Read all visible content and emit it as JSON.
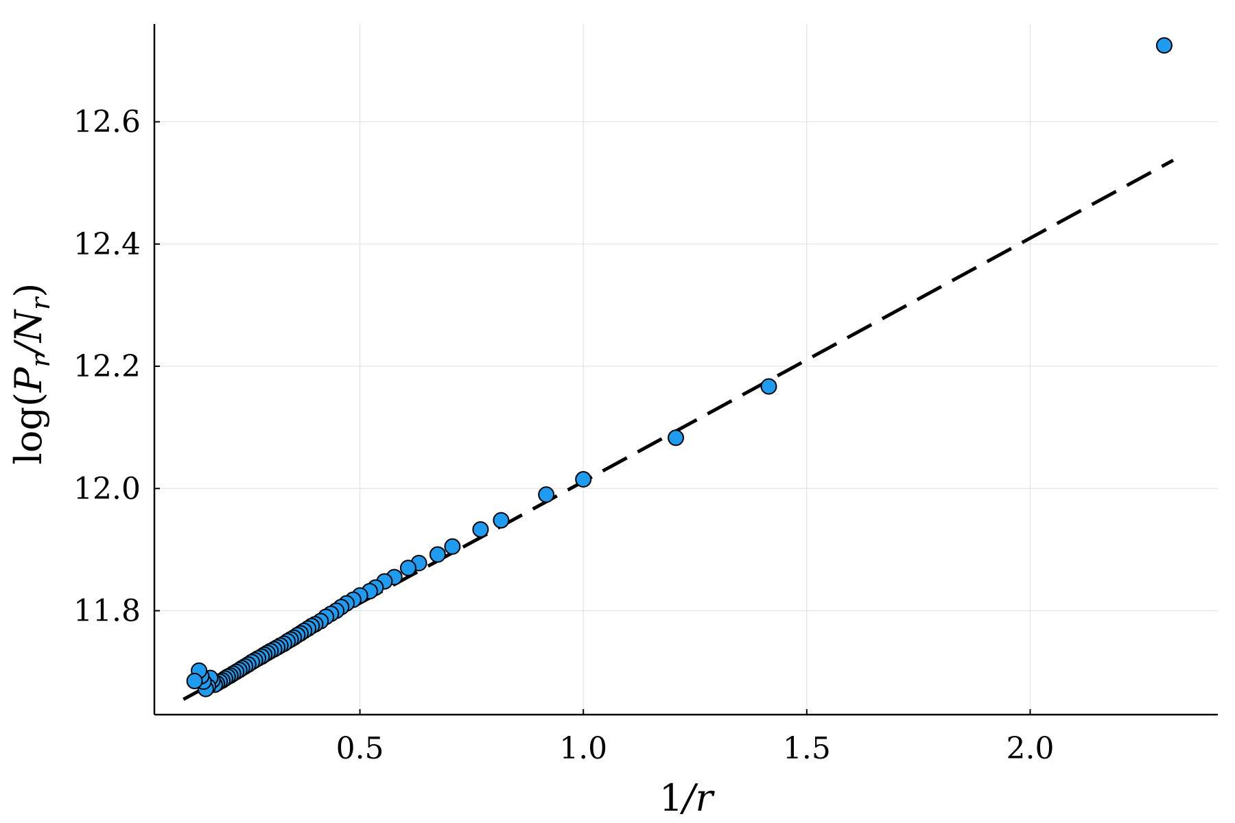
{
  "chart_data": {
    "type": "scatter",
    "title": "",
    "xlabel": "1/r",
    "ylabel": "log(P_r/N_r)",
    "xlim": [
      0.04,
      2.42
    ],
    "ylim": [
      11.63,
      12.76
    ],
    "xticks": [
      0.5,
      1.0,
      1.5,
      2.0
    ],
    "xtick_labels": [
      "0.5",
      "1.0",
      "1.5",
      "2.0"
    ],
    "yticks": [
      11.8,
      12.0,
      12.2,
      12.4,
      12.6
    ],
    "ytick_labels": [
      "11.8",
      "12.0",
      "12.2",
      "12.4",
      "12.6"
    ],
    "grid": true,
    "legend": "none",
    "colors": {
      "points": "#1f9bf0",
      "fit_line": "#000000",
      "grid": "#e3e3e3"
    },
    "series": [
      {
        "type": "scatter",
        "x": [
          2.3,
          1.415,
          1.207,
          1.0,
          0.917,
          0.816,
          0.77,
          0.707,
          0.674,
          0.632,
          0.608,
          0.577,
          0.555,
          0.535,
          0.522,
          0.5,
          0.485,
          0.47,
          0.458,
          0.447,
          0.435,
          0.424,
          0.412,
          0.4,
          0.392,
          0.384,
          0.375,
          0.367,
          0.36,
          0.352,
          0.345,
          0.338,
          0.33,
          0.322,
          0.315,
          0.308,
          0.3,
          0.293,
          0.286,
          0.28,
          0.272,
          0.265,
          0.258,
          0.25,
          0.243,
          0.236,
          0.23,
          0.223,
          0.216,
          0.21,
          0.204,
          0.198,
          0.192,
          0.186,
          0.18,
          0.175,
          0.17,
          0.165,
          0.16,
          0.155,
          0.15,
          0.145,
          0.14,
          0.13
        ],
        "y": [
          12.725,
          12.167,
          12.083,
          12.015,
          11.99,
          11.948,
          11.933,
          11.905,
          11.892,
          11.878,
          11.87,
          11.855,
          11.848,
          11.838,
          11.832,
          11.825,
          11.818,
          11.812,
          11.806,
          11.8,
          11.795,
          11.79,
          11.783,
          11.778,
          11.775,
          11.771,
          11.767,
          11.763,
          11.76,
          11.756,
          11.753,
          11.75,
          11.746,
          11.743,
          11.74,
          11.737,
          11.734,
          11.731,
          11.728,
          11.725,
          11.722,
          11.719,
          11.716,
          11.712,
          11.709,
          11.706,
          11.703,
          11.7,
          11.697,
          11.694,
          11.692,
          11.689,
          11.686,
          11.684,
          11.681,
          11.679,
          11.686,
          11.69,
          11.676,
          11.672,
          11.684,
          11.693,
          11.702,
          11.685
        ]
      },
      {
        "type": "line",
        "style": "dashed",
        "x": [
          0.105,
          2.32
        ],
        "y": [
          11.655,
          12.537
        ]
      }
    ]
  }
}
